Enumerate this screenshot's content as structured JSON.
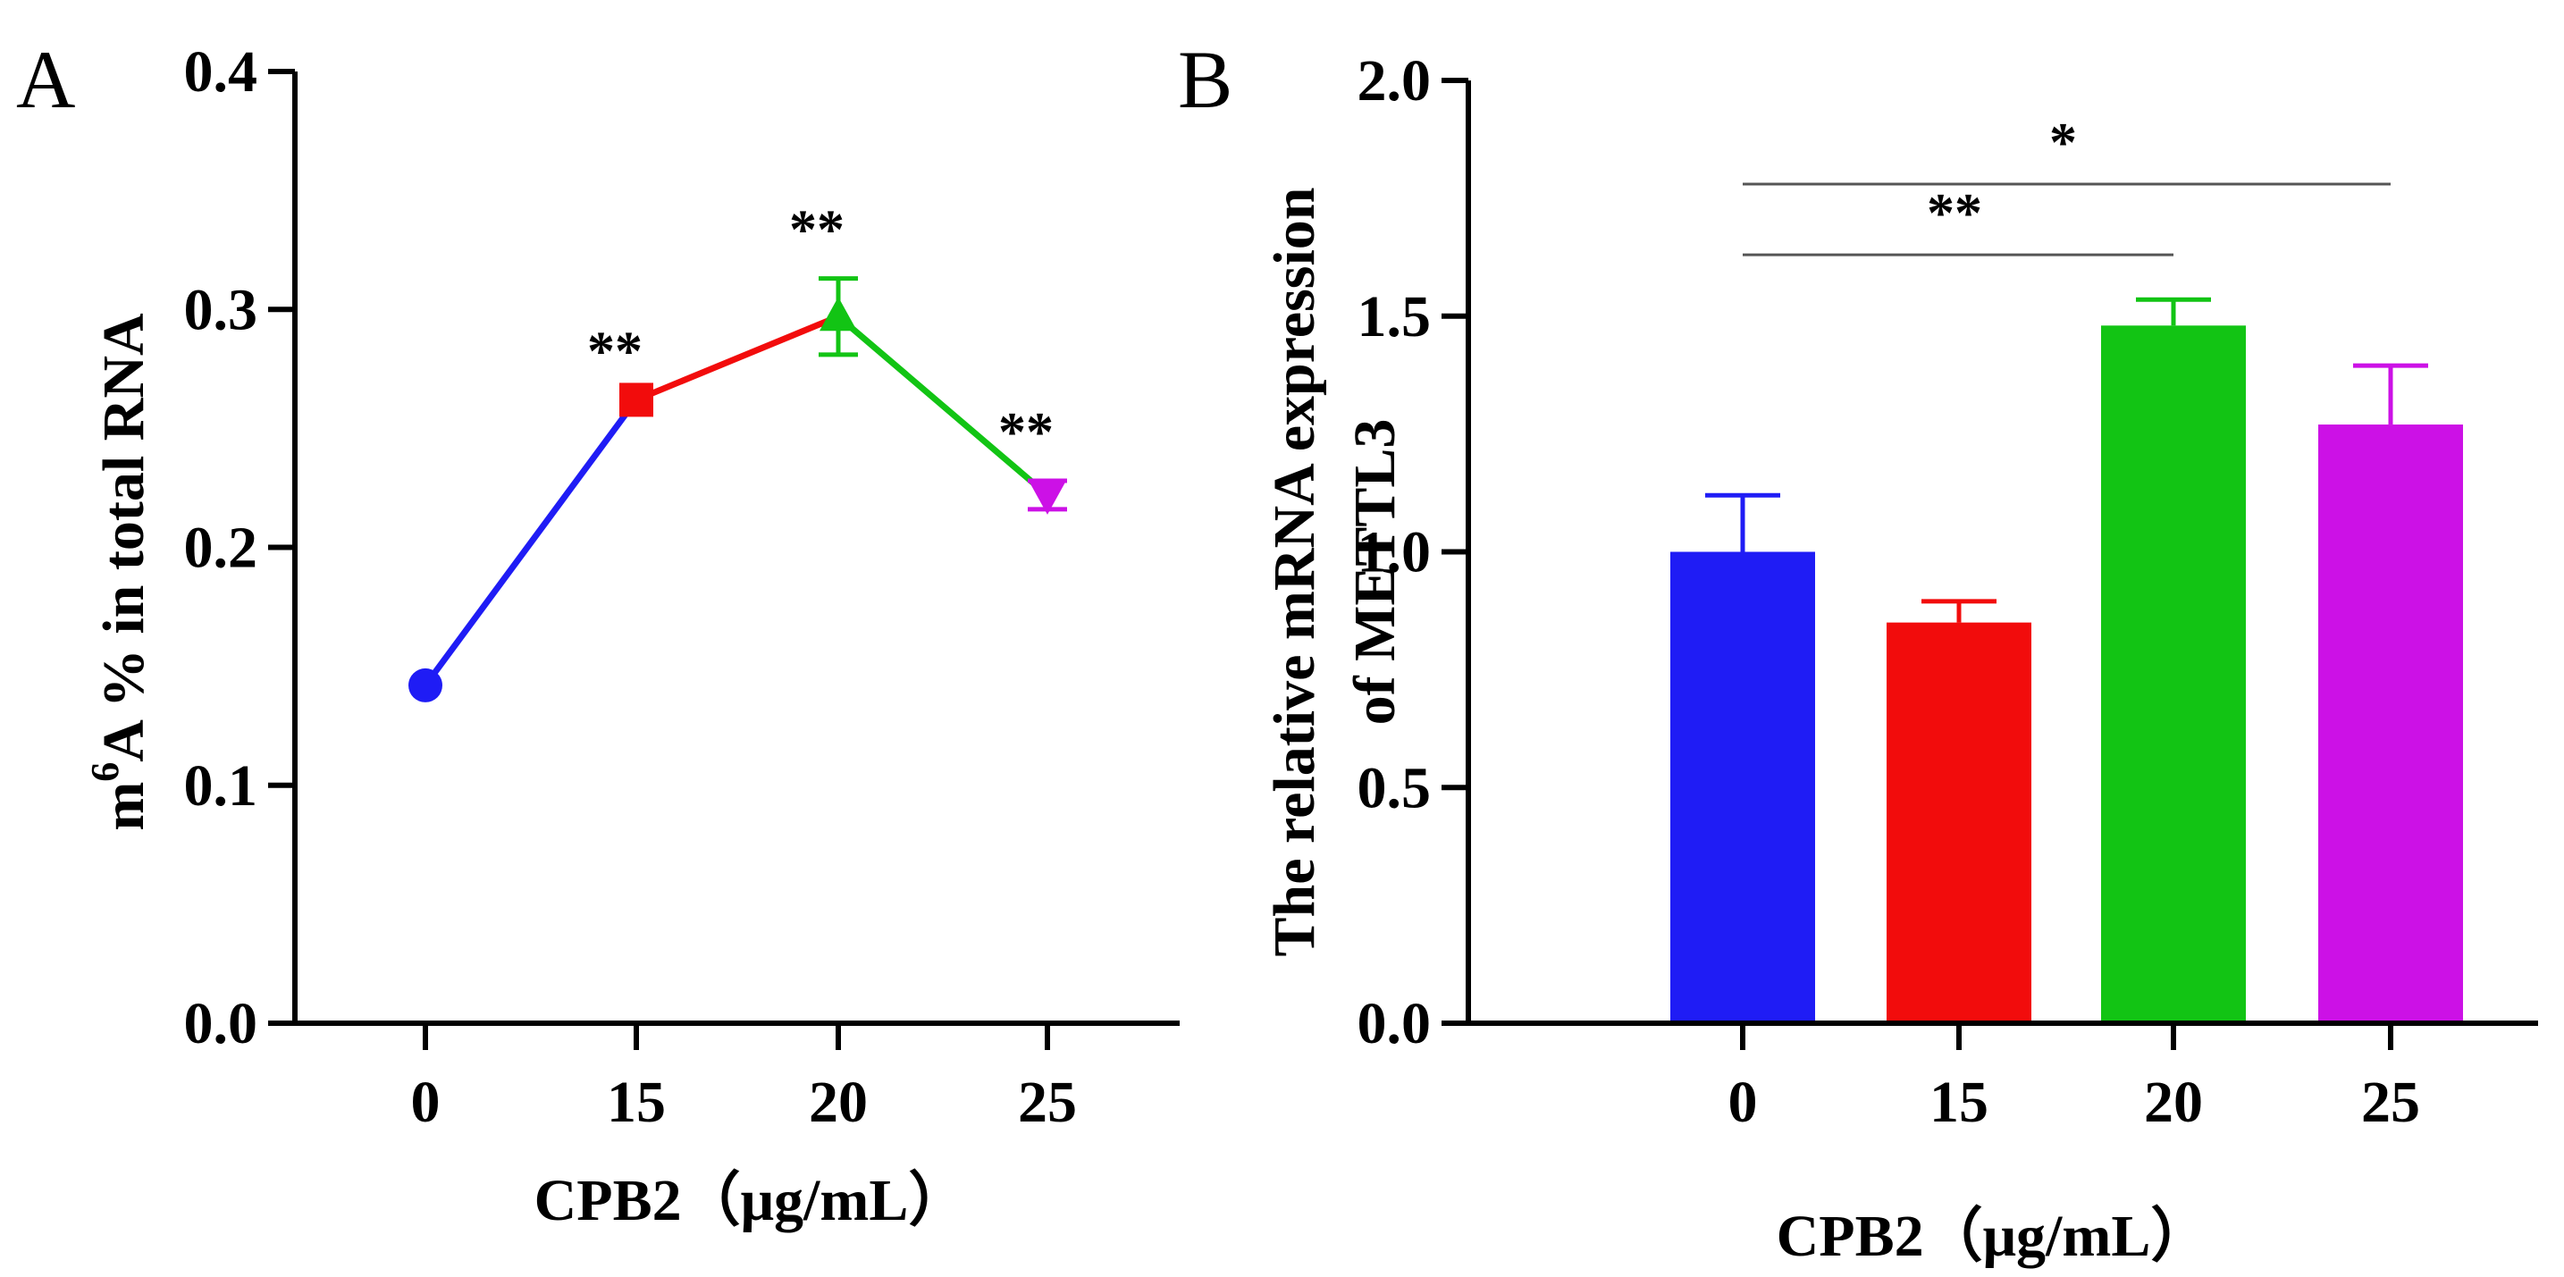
{
  "chart_data": [
    {
      "panel": "A",
      "type": "line",
      "xlabel": "CPB2（μg/mL）",
      "ylabel_prefix": "m",
      "ylabel_sup": "6",
      "ylabel_rest": "A % in total RNA",
      "categories": [
        "0",
        "15",
        "20",
        "25"
      ],
      "values": [
        0.142,
        0.262,
        0.297,
        0.222
      ],
      "errors": [
        0.0,
        0.0,
        0.016,
        0.006
      ],
      "markers": [
        "circle",
        "square",
        "triangle-up",
        "triangle-down"
      ],
      "colors": [
        "#1f1cf5",
        "#f20c0c",
        "#12c414",
        "#cc11e6"
      ],
      "significance": [
        "",
        "**",
        "**",
        "**"
      ],
      "ylim": [
        0.0,
        0.4
      ],
      "yticks": [
        "0.0",
        "0.1",
        "0.2",
        "0.3",
        "0.4"
      ]
    },
    {
      "panel": "B",
      "type": "bar",
      "xlabel": "CPB2（μg/mL）",
      "ylabel_line1": "The relative mRNA expression",
      "ylabel_line2": "of METTL3",
      "categories": [
        "0",
        "15",
        "20",
        "25"
      ],
      "values": [
        1.0,
        0.85,
        1.48,
        1.27
      ],
      "errors": [
        0.12,
        0.045,
        0.055,
        0.125
      ],
      "colors": [
        "#1f1cf5",
        "#f20c0c",
        "#12c414",
        "#cc11e6"
      ],
      "ylim": [
        0.0,
        2.0
      ],
      "yticks": [
        "0.0",
        "0.5",
        "1.0",
        "1.5",
        "2.0"
      ],
      "brackets": [
        {
          "from": "0",
          "to": "20",
          "label": "**",
          "level": 1.63
        },
        {
          "from": "0",
          "to": "25",
          "label": "*",
          "level": 1.78
        }
      ]
    }
  ]
}
